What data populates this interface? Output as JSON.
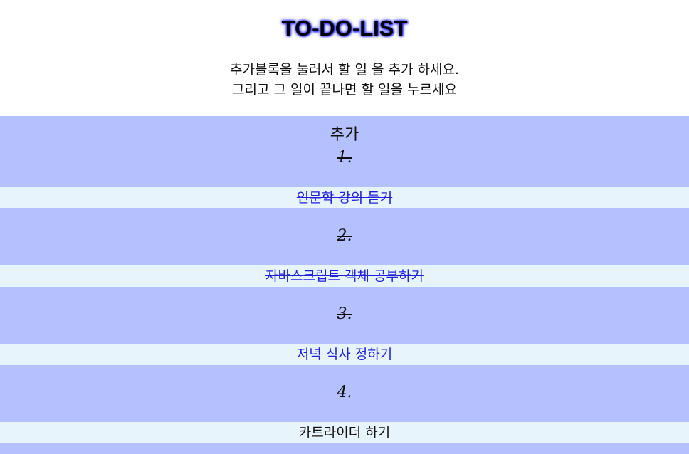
{
  "header": {
    "title": "TO-DO-LIST",
    "line1": "추가블록을 눌러서 할 일 을 추가 하세요.",
    "line2": "그리고 그 일이 끝나면 할 일을 누르세요"
  },
  "add_label": "추가",
  "colors": {
    "block_bg": "#b4c1fe",
    "task_bg": "#e8f4fb",
    "done_text": "#2222dd",
    "title_glow": "#2f2fff"
  },
  "items": [
    {
      "num": "1.",
      "text": "인문학 강의 듣기",
      "done": true
    },
    {
      "num": "2.",
      "text": "자바스크립트 객체 공부하기",
      "done": true
    },
    {
      "num": "3.",
      "text": "저녁 식사 정하기",
      "done": true
    },
    {
      "num": "4.",
      "text": "카트라이더 하기",
      "done": false
    }
  ]
}
